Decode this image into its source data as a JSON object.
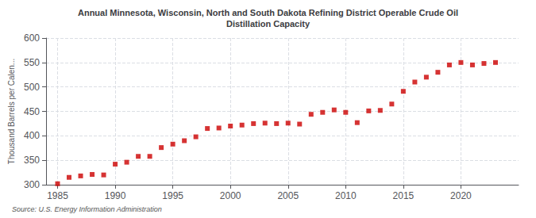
{
  "chart_data": {
    "type": "scatter",
    "title": "Annual Minnesota, Wisconsin, North and South Dakota Refining District Operable Crude Oil\nDistillation Capacity",
    "ylabel": "Thousand Barrels per Calen...",
    "source": "Source: U.S. Energy Information Administration",
    "x": [
      1985,
      1986,
      1987,
      1988,
      1989,
      1990,
      1991,
      1992,
      1993,
      1994,
      1995,
      1996,
      1997,
      1998,
      1999,
      2000,
      2001,
      2002,
      2003,
      2004,
      2005,
      2006,
      2007,
      2008,
      2009,
      2010,
      2011,
      2012,
      2013,
      2014,
      2015,
      2016,
      2017,
      2018,
      2019,
      2020,
      2021,
      2022,
      2023
    ],
    "values": [
      302,
      315,
      318,
      321,
      320,
      342,
      346,
      358,
      358,
      376,
      383,
      390,
      398,
      415,
      416,
      420,
      422,
      425,
      426,
      425,
      426,
      424,
      444,
      448,
      453,
      448,
      427,
      451,
      452,
      465,
      491,
      510,
      520,
      530,
      545,
      550,
      545,
      548,
      550
    ],
    "color": "#cc0000",
    "marker": "square",
    "xlim": [
      1984,
      2025
    ],
    "xticks": [
      1985,
      1990,
      1995,
      2000,
      2005,
      2010,
      2015,
      2020
    ],
    "ylim": [
      300,
      600
    ],
    "yticks": [
      300,
      350,
      400,
      450,
      500,
      550,
      600
    ],
    "grid": true
  }
}
